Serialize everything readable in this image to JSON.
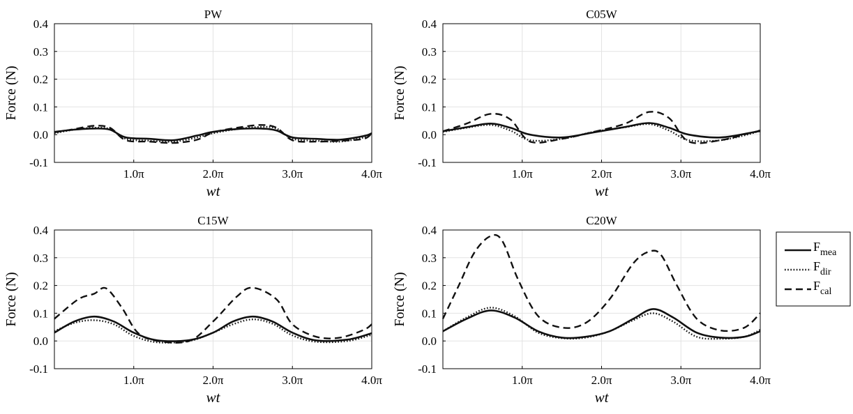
{
  "figure": {
    "ylabel": "Force (N)",
    "xlabel": "wt",
    "xticks": [
      "1.0π",
      "2.0π",
      "3.0π",
      "4.0π"
    ],
    "yticks": [
      "0.4",
      "0.3",
      "0.2",
      "0.1",
      "0.0",
      "-0.1"
    ],
    "legend": [
      {
        "base": "F",
        "sub": "mea",
        "style": "solid"
      },
      {
        "base": "F",
        "sub": "dir",
        "style": "dotted"
      },
      {
        "base": "F",
        "sub": "cal",
        "style": "dashed"
      }
    ]
  },
  "chart_data": [
    {
      "type": "line",
      "title": "PW",
      "xlabel": "wt",
      "ylabel": "Force (N)",
      "xlim": [
        0,
        4
      ],
      "ylim": [
        -0.1,
        0.4
      ],
      "x_unit": "π",
      "grid": true,
      "series": [
        {
          "name": "F_mea",
          "style": "solid",
          "x": [
            0,
            0.25,
            0.5,
            0.7,
            0.9,
            1.2,
            1.5,
            1.8,
            2.0,
            2.3,
            2.6,
            2.8,
            3.0,
            3.3,
            3.6,
            3.9,
            4.0
          ],
          "y": [
            0.01,
            0.018,
            0.022,
            0.018,
            -0.01,
            -0.015,
            -0.02,
            -0.003,
            0.01,
            0.02,
            0.022,
            0.015,
            -0.01,
            -0.015,
            -0.018,
            -0.005,
            0.005
          ]
        },
        {
          "name": "F_dir",
          "style": "dotted",
          "x": [
            0,
            0.25,
            0.5,
            0.7,
            0.9,
            1.2,
            1.5,
            1.8,
            2.0,
            2.3,
            2.6,
            2.8,
            3.0,
            3.3,
            3.6,
            3.9,
            4.0
          ],
          "y": [
            0.005,
            0.018,
            0.025,
            0.02,
            -0.015,
            -0.022,
            -0.025,
            -0.01,
            0.005,
            0.02,
            0.028,
            0.022,
            -0.015,
            -0.022,
            -0.025,
            -0.01,
            0.005
          ]
        },
        {
          "name": "F_cal",
          "style": "dashed",
          "x": [
            0,
            0.25,
            0.5,
            0.7,
            0.9,
            1.2,
            1.5,
            1.8,
            2.0,
            2.3,
            2.6,
            2.8,
            3.0,
            3.3,
            3.6,
            3.9,
            4.0
          ],
          "y": [
            0.008,
            0.02,
            0.032,
            0.025,
            -0.02,
            -0.025,
            -0.03,
            -0.018,
            0.008,
            0.025,
            0.035,
            0.025,
            -0.02,
            -0.025,
            -0.022,
            -0.015,
            0.005
          ]
        }
      ]
    },
    {
      "type": "line",
      "title": "C05W",
      "xlabel": "wt",
      "ylabel": "Force (N)",
      "xlim": [
        0,
        4
      ],
      "ylim": [
        -0.1,
        0.4
      ],
      "x_unit": "π",
      "grid": true,
      "series": [
        {
          "name": "F_mea",
          "style": "solid",
          "x": [
            0,
            0.3,
            0.6,
            0.85,
            1.1,
            1.5,
            1.9,
            2.3,
            2.6,
            2.85,
            3.1,
            3.5,
            3.9,
            4.0
          ],
          "y": [
            0.012,
            0.027,
            0.04,
            0.025,
            0.0,
            -0.01,
            0.008,
            0.028,
            0.042,
            0.025,
            0.0,
            -0.01,
            0.008,
            0.015
          ]
        },
        {
          "name": "F_dir",
          "style": "dotted",
          "x": [
            0,
            0.3,
            0.6,
            0.85,
            1.1,
            1.5,
            1.9,
            2.3,
            2.6,
            2.85,
            3.1,
            3.5,
            3.9,
            4.0
          ],
          "y": [
            0.01,
            0.025,
            0.035,
            0.015,
            -0.02,
            -0.015,
            0.01,
            0.027,
            0.038,
            0.015,
            -0.02,
            -0.02,
            0.005,
            0.018
          ]
        },
        {
          "name": "F_cal",
          "style": "dashed",
          "x": [
            0,
            0.3,
            0.6,
            0.85,
            1.1,
            1.5,
            1.9,
            2.3,
            2.6,
            2.85,
            3.1,
            3.5,
            3.9,
            4.0
          ],
          "y": [
            0.012,
            0.04,
            0.075,
            0.055,
            -0.025,
            -0.015,
            0.01,
            0.04,
            0.082,
            0.06,
            -0.025,
            -0.02,
            0.008,
            0.012
          ]
        }
      ]
    },
    {
      "type": "line",
      "title": "C15W",
      "xlabel": "wt",
      "ylabel": "Force (N)",
      "xlim": [
        0,
        4
      ],
      "ylim": [
        -0.1,
        0.4
      ],
      "x_unit": "π",
      "grid": true,
      "series": [
        {
          "name": "F_mea",
          "style": "solid",
          "x": [
            0,
            0.25,
            0.5,
            0.75,
            1.0,
            1.3,
            1.7,
            2.0,
            2.25,
            2.5,
            2.75,
            3.0,
            3.3,
            3.7,
            4.0
          ],
          "y": [
            0.03,
            0.07,
            0.088,
            0.07,
            0.03,
            0.002,
            0.003,
            0.03,
            0.07,
            0.088,
            0.07,
            0.03,
            0.002,
            0.005,
            0.028
          ]
        },
        {
          "name": "F_dir",
          "style": "dotted",
          "x": [
            0,
            0.25,
            0.5,
            0.75,
            1.0,
            1.3,
            1.7,
            2.0,
            2.25,
            2.5,
            2.75,
            3.0,
            3.3,
            3.7,
            4.0
          ],
          "y": [
            0.035,
            0.065,
            0.075,
            0.06,
            0.018,
            -0.005,
            0.0,
            0.03,
            0.06,
            0.078,
            0.062,
            0.02,
            -0.003,
            0.0,
            0.022
          ]
        },
        {
          "name": "F_cal",
          "style": "dashed",
          "x": [
            0,
            0.3,
            0.5,
            0.65,
            0.85,
            1.05,
            1.3,
            1.7,
            2.0,
            2.3,
            2.5,
            2.8,
            3.0,
            3.3,
            3.6,
            3.9,
            4.0
          ],
          "y": [
            0.08,
            0.15,
            0.17,
            0.19,
            0.12,
            0.03,
            0.0,
            0.0,
            0.07,
            0.16,
            0.192,
            0.15,
            0.06,
            0.015,
            0.012,
            0.04,
            0.06
          ]
        }
      ]
    },
    {
      "type": "line",
      "title": "C20W",
      "xlabel": "wt",
      "ylabel": "Force (N)",
      "xlim": [
        0,
        4
      ],
      "ylim": [
        -0.1,
        0.4
      ],
      "x_unit": "π",
      "grid": true,
      "series": [
        {
          "name": "F_mea",
          "style": "solid",
          "x": [
            0,
            0.3,
            0.6,
            0.9,
            1.2,
            1.5,
            1.8,
            2.1,
            2.4,
            2.65,
            2.9,
            3.2,
            3.5,
            3.8,
            4.0
          ],
          "y": [
            0.035,
            0.08,
            0.11,
            0.085,
            0.035,
            0.012,
            0.015,
            0.035,
            0.08,
            0.115,
            0.085,
            0.03,
            0.012,
            0.015,
            0.035
          ]
        },
        {
          "name": "F_dir",
          "style": "dotted",
          "x": [
            0,
            0.3,
            0.6,
            0.9,
            1.2,
            1.5,
            1.8,
            2.1,
            2.4,
            2.65,
            2.9,
            3.2,
            3.5,
            3.8,
            4.0
          ],
          "y": [
            0.035,
            0.085,
            0.12,
            0.09,
            0.03,
            0.01,
            0.012,
            0.035,
            0.075,
            0.1,
            0.07,
            0.015,
            0.008,
            0.015,
            0.04
          ]
        },
        {
          "name": "F_cal",
          "style": "dashed",
          "x": [
            0,
            0.2,
            0.4,
            0.6,
            0.75,
            0.95,
            1.2,
            1.5,
            1.8,
            2.1,
            2.4,
            2.6,
            2.75,
            2.95,
            3.2,
            3.5,
            3.8,
            4.0
          ],
          "y": [
            0.08,
            0.2,
            0.32,
            0.378,
            0.36,
            0.22,
            0.09,
            0.048,
            0.065,
            0.15,
            0.28,
            0.322,
            0.31,
            0.2,
            0.08,
            0.038,
            0.048,
            0.1
          ]
        }
      ]
    }
  ]
}
